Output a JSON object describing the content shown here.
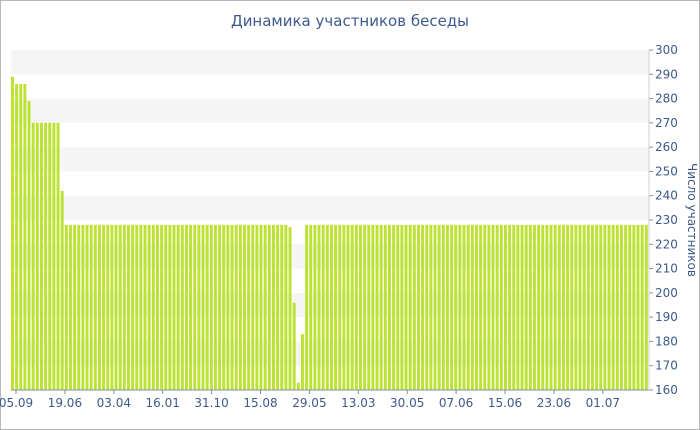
{
  "chart_data": {
    "type": "bar",
    "title": "Динамика участников беседы",
    "ylabel": "Число участников",
    "xlabel": "",
    "ylim": [
      160,
      300
    ],
    "yticks": [
      160,
      170,
      180,
      190,
      200,
      210,
      220,
      230,
      240,
      250,
      260,
      270,
      280,
      290,
      300
    ],
    "xtick_labels": [
      "05.09",
      "19.06",
      "03.04",
      "16.01",
      "31.10",
      "15.08",
      "29.05",
      "13.03",
      "30.05",
      "07.06",
      "15.06",
      "23.06",
      "01.07"
    ],
    "grid": "horizontal bands",
    "bar_color": "#bde234",
    "values": [
      289,
      286,
      286,
      286,
      279,
      270,
      270,
      270,
      270,
      270,
      270,
      270,
      242,
      228,
      228,
      228,
      228,
      228,
      228,
      228,
      228,
      228,
      228,
      228,
      228,
      228,
      228,
      228,
      228,
      228,
      228,
      228,
      228,
      228,
      228,
      228,
      228,
      228,
      228,
      228,
      228,
      228,
      228,
      228,
      228,
      228,
      228,
      228,
      228,
      228,
      228,
      228,
      228,
      228,
      228,
      228,
      228,
      228,
      228,
      228,
      228,
      228,
      228,
      228,
      228,
      228,
      228,
      227,
      196,
      163,
      183,
      228,
      228,
      228,
      228,
      228,
      228,
      228,
      228,
      228,
      228,
      228,
      228,
      228,
      228,
      228,
      228,
      228,
      228,
      228,
      228,
      228,
      228,
      228,
      228,
      228,
      228,
      228,
      228,
      228,
      228,
      228,
      228,
      228,
      228,
      228,
      228,
      228,
      228,
      228,
      228,
      228,
      228,
      228,
      228,
      228,
      228,
      228,
      228,
      228,
      228,
      228,
      228,
      228,
      228,
      228,
      228,
      228,
      228,
      228,
      228,
      228,
      228,
      228,
      228,
      228,
      228,
      228,
      228,
      228,
      228,
      228,
      228,
      228,
      228,
      228,
      228,
      228,
      228,
      228,
      228,
      228,
      228,
      228
    ]
  }
}
